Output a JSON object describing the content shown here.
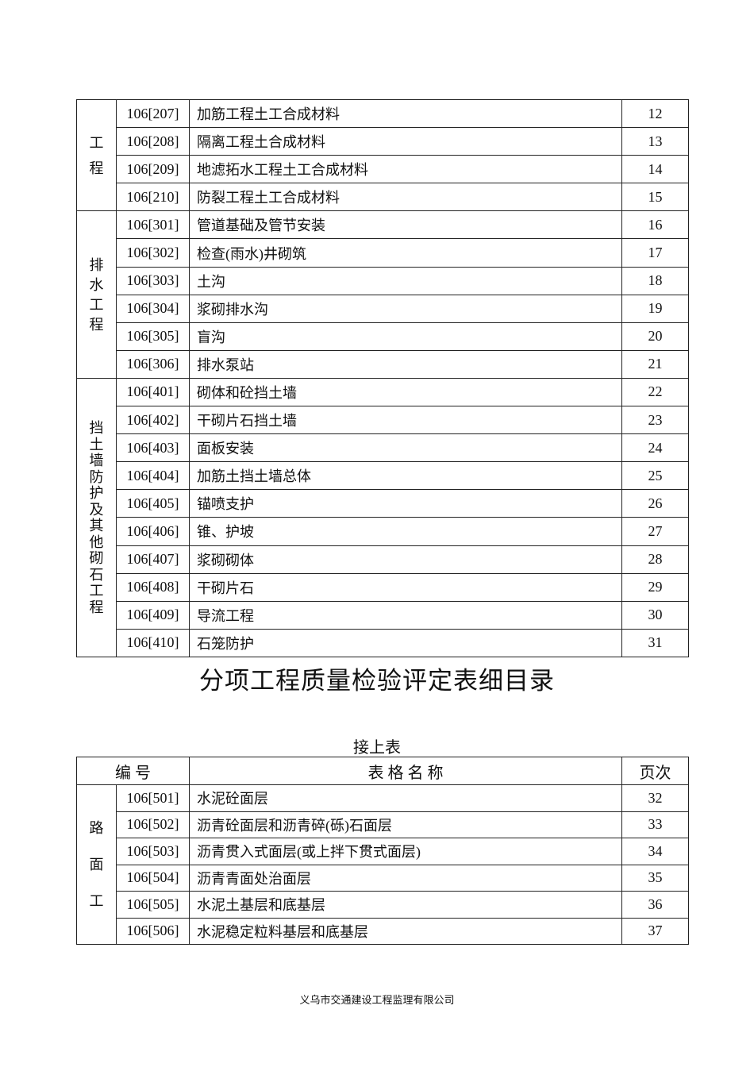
{
  "table1": {
    "groups": [
      {
        "label_chars": [
          "工",
          "程"
        ],
        "gap": 28,
        "rows": [
          {
            "code": "106[207]",
            "name": "加筋工程土工合成材料",
            "page": "12"
          },
          {
            "code": "106[208]",
            "name": "隔离工程土合成材料",
            "page": "13"
          },
          {
            "code": "106[209]",
            "name": "地滤拓水工程土工合成材料",
            "page": "14"
          },
          {
            "code": "106[210]",
            "name": "防裂工程土工合成材料",
            "page": "15"
          }
        ]
      },
      {
        "label_chars": [
          "排",
          "水",
          "工",
          "程"
        ],
        "gap": 14,
        "rows": [
          {
            "code": "106[301]",
            "name": "管道基础及管节安装",
            "page": "16"
          },
          {
            "code": "106[302]",
            "name": "检查(雨水)井砌筑",
            "page": "17"
          },
          {
            "code": "106[303]",
            "name": "土沟",
            "page": "18"
          },
          {
            "code": "106[304]",
            "name": "浆砌排水沟",
            "page": "19"
          },
          {
            "code": "106[305]",
            "name": "盲沟",
            "page": "20"
          },
          {
            "code": "106[306]",
            "name": "排水泵站",
            "page": "21"
          }
        ]
      },
      {
        "label_chars": [
          "挡",
          "土",
          "墙",
          "防",
          "护",
          "及",
          "其",
          "他",
          "砌",
          "石",
          "工",
          "程"
        ],
        "gap": 5,
        "rows": [
          {
            "code": "106[401]",
            "name": "砌体和砼挡土墙",
            "page": "22"
          },
          {
            "code": "106[402]",
            "name": "干砌片石挡土墙",
            "page": "23"
          },
          {
            "code": "106[403]",
            "name": "面板安装",
            "page": "24"
          },
          {
            "code": "106[404]",
            "name": "加筋土挡土墙总体",
            "page": "25"
          },
          {
            "code": "106[405]",
            "name": "锚喷支护",
            "page": "26"
          },
          {
            "code": "106[406]",
            "name": "锥、护坡",
            "page": "27"
          },
          {
            "code": "106[407]",
            "name": "浆砌砌体",
            "page": "28"
          },
          {
            "code": "106[408]",
            "name": "干砌片石",
            "page": "29"
          },
          {
            "code": "106[409]",
            "name": "导流工程",
            "page": "30"
          },
          {
            "code": "106[410]",
            "name": "石笼防护",
            "page": "31"
          }
        ]
      }
    ]
  },
  "title": "分项工程质量检验评定表细目录",
  "continued_label": "接上表",
  "table2": {
    "headers": {
      "code": "编 号",
      "name": "表 格 名 称",
      "page": "页次"
    },
    "groups": [
      {
        "label_chars": [
          "路",
          "面",
          "工"
        ],
        "gap": 56,
        "rows": [
          {
            "code": "106[501]",
            "name": "水泥砼面层",
            "page": "32"
          },
          {
            "code": "106[502]",
            "name": "沥青砼面层和沥青碎(砾)石面层",
            "page": "33"
          },
          {
            "code": "106[503]",
            "name": "沥青贯入式面层(或上拌下贯式面层)",
            "page": "34"
          },
          {
            "code": "106[504]",
            "name": "沥青青面处治面层",
            "page": "35"
          },
          {
            "code": "106[505]",
            "name": "水泥土基层和底基层",
            "page": "36"
          },
          {
            "code": "106[506]",
            "name": "水泥稳定粒料基层和底基层",
            "page": "37"
          }
        ]
      }
    ]
  },
  "footer": "义乌市交通建设工程监理有限公司"
}
